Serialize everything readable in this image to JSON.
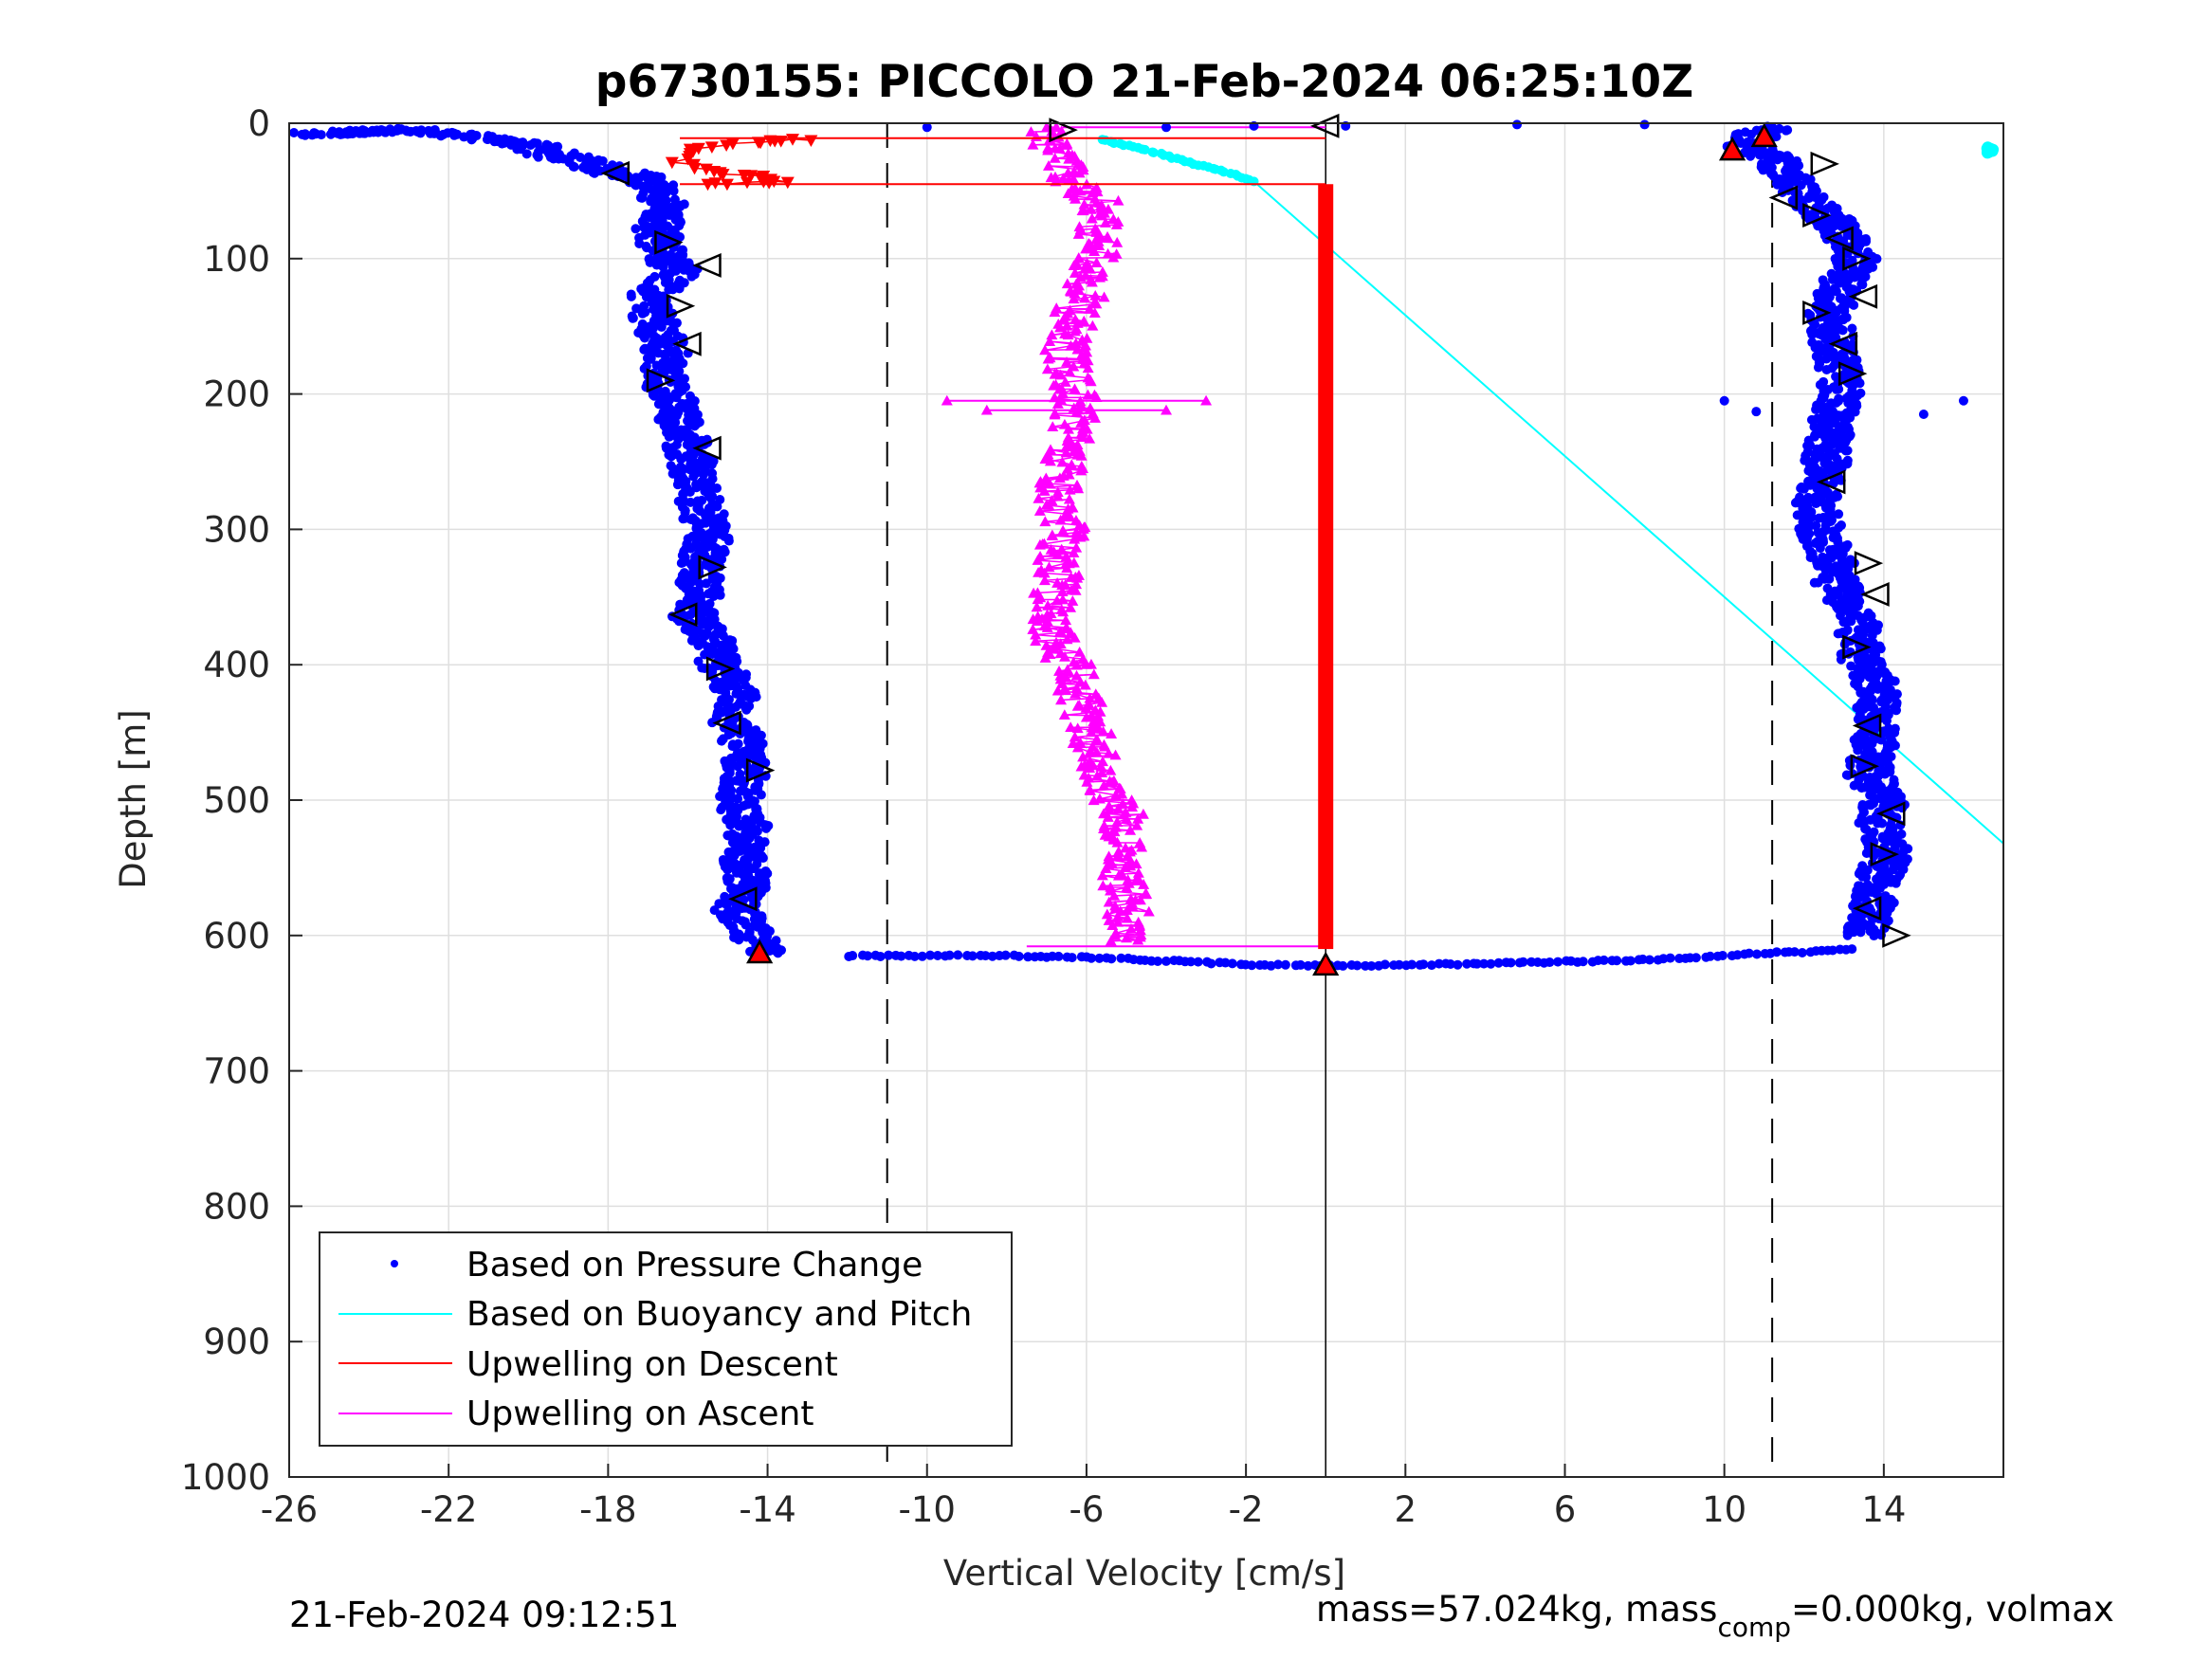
{
  "chart_data": {
    "type": "scatter",
    "title": "p6730155: PICCOLO 21-Feb-2024 06:25:10Z",
    "xlabel": "Vertical Velocity [cm/s]",
    "ylabel": "Depth [m]",
    "xlim": [
      -26,
      17
    ],
    "ylim": [
      0,
      1000
    ],
    "y_reversed": true,
    "x_ticks": [
      -26,
      -22,
      -18,
      -14,
      -10,
      -6,
      -2,
      2,
      6,
      10,
      14
    ],
    "x_tick_labels": [
      "-26",
      "-22",
      "-18",
      "-14",
      "-10",
      "-6",
      "-2",
      "2",
      "6",
      "10",
      "14"
    ],
    "y_ticks": [
      0,
      100,
      200,
      300,
      400,
      500,
      600,
      700,
      800,
      900,
      1000
    ],
    "y_tick_labels": [
      "0",
      "100",
      "200",
      "300",
      "400",
      "500",
      "600",
      "700",
      "800",
      "900",
      "1000"
    ],
    "grid": true,
    "legend_position": "bottom-left",
    "reference_lines": {
      "dashed_x": [
        -11,
        11.2
      ],
      "solid_x": [
        0
      ]
    },
    "series": [
      {
        "name": "Based on Pressure Change",
        "color": "#0000ff",
        "style": "dots",
        "descent": [
          [
            -25.5,
            8
          ],
          [
            -23,
            5
          ],
          [
            -20,
            15
          ],
          [
            -19.5,
            22
          ],
          [
            -18.5,
            30
          ],
          [
            -17.8,
            37
          ],
          [
            -17,
            40
          ],
          [
            -16.5,
            60
          ],
          [
            -16.8,
            80
          ],
          [
            -16.5,
            100
          ],
          [
            -16.2,
            110
          ],
          [
            -17,
            130
          ],
          [
            -16.8,
            150
          ],
          [
            -16.5,
            170
          ],
          [
            -16.6,
            190
          ],
          [
            -16.3,
            210
          ],
          [
            -16.1,
            230
          ],
          [
            -15.9,
            250
          ],
          [
            -15.8,
            270
          ],
          [
            -15.6,
            290
          ],
          [
            -15.5,
            310
          ],
          [
            -15.7,
            330
          ],
          [
            -15.7,
            350
          ],
          [
            -15.9,
            365
          ],
          [
            -15.4,
            380
          ],
          [
            -15.2,
            400
          ],
          [
            -14.8,
            420
          ],
          [
            -14.9,
            440
          ],
          [
            -14.6,
            460
          ],
          [
            -14.5,
            480
          ],
          [
            -14.7,
            500
          ],
          [
            -14.5,
            520
          ],
          [
            -14.6,
            540
          ],
          [
            -14.5,
            560
          ],
          [
            -14.8,
            580
          ],
          [
            -14.4,
            600
          ],
          [
            -14.1,
            613
          ]
        ],
        "bottom_turn": [
          [
            -12,
            615
          ],
          [
            -8,
            615
          ],
          [
            -6,
            616
          ],
          [
            -4.5,
            618
          ],
          [
            -3,
            620
          ],
          [
            -1.5,
            622
          ],
          [
            1.5,
            622
          ],
          [
            3.5,
            621
          ],
          [
            5,
            620
          ],
          [
            6.5,
            619
          ],
          [
            8,
            618
          ],
          [
            9.5,
            616
          ],
          [
            11,
            613
          ],
          [
            12.3,
            612
          ],
          [
            13.2,
            610
          ]
        ],
        "ascent": [
          [
            13.5,
            600
          ],
          [
            13.7,
            580
          ],
          [
            13.8,
            560
          ],
          [
            14.1,
            540
          ],
          [
            13.9,
            520
          ],
          [
            14.0,
            500
          ],
          [
            13.6,
            480
          ],
          [
            13.8,
            460
          ],
          [
            13.8,
            440
          ],
          [
            13.9,
            420
          ],
          [
            13.5,
            400
          ],
          [
            13.4,
            380
          ],
          [
            13.3,
            360
          ],
          [
            12.8,
            340
          ],
          [
            12.7,
            320
          ],
          [
            12.4,
            300
          ],
          [
            12.3,
            280
          ],
          [
            12.5,
            260
          ],
          [
            12.6,
            240
          ],
          [
            12.7,
            220
          ],
          [
            12.9,
            200
          ],
          [
            12.9,
            180
          ],
          [
            12.7,
            160
          ],
          [
            12.6,
            140
          ],
          [
            12.9,
            120
          ],
          [
            13.3,
            100
          ],
          [
            13.0,
            80
          ],
          [
            12.2,
            60
          ],
          [
            11.7,
            40
          ],
          [
            11.2,
            25
          ],
          [
            10.6,
            18
          ],
          [
            10.8,
            8
          ],
          [
            11.2,
            3
          ]
        ],
        "surface_outliers": [
          [
            -10,
            3
          ],
          [
            -4,
            3
          ],
          [
            -1.8,
            2
          ],
          [
            0.5,
            2
          ],
          [
            4.8,
            1
          ],
          [
            8,
            1
          ]
        ],
        "side_outliers": [
          [
            16,
            205
          ],
          [
            15,
            215
          ],
          [
            10,
            205
          ],
          [
            10.8,
            213
          ]
        ]
      },
      {
        "name": "Based on Buoyancy and Pitch",
        "color": "#00ffff",
        "style": "line",
        "points": [
          [
            -5.6,
            12
          ],
          [
            -4.5,
            20
          ],
          [
            -3.5,
            28
          ],
          [
            -2.4,
            37
          ],
          [
            -1.8,
            43
          ],
          [
            17,
            532
          ]
        ],
        "surface_cluster": [
          [
            16.6,
            18
          ],
          [
            16.7,
            20
          ],
          [
            16.6,
            22
          ]
        ]
      },
      {
        "name": "Upwelling on Descent",
        "color": "#ff0000",
        "style": "line-triangle-down",
        "points": [
          [
            -13,
            12
          ],
          [
            -14.5,
            14
          ],
          [
            -15,
            16
          ],
          [
            -15.5,
            18
          ],
          [
            -16,
            22
          ],
          [
            -16.2,
            27
          ],
          [
            -16,
            33
          ],
          [
            -15,
            37
          ],
          [
            -14,
            40
          ],
          [
            -13.5,
            43
          ],
          [
            -15.5,
            45
          ]
        ],
        "horizontal_connectors": [
          [
            -16.2,
            11,
            0,
            11
          ],
          [
            -16.2,
            45,
            0,
            45
          ]
        ],
        "column_x": 0,
        "column_range": [
          45,
          610
        ]
      },
      {
        "name": "Upwelling on Ascent",
        "color": "#ff00ff",
        "style": "line-triangle-up",
        "points": [
          [
            -5.2,
            605
          ],
          [
            -4.9,
            580
          ],
          [
            -5.1,
            560
          ],
          [
            -5.2,
            540
          ],
          [
            -5.0,
            520
          ],
          [
            -5.3,
            500
          ],
          [
            -5.6,
            480
          ],
          [
            -5.8,
            460
          ],
          [
            -6.0,
            440
          ],
          [
            -6.2,
            420
          ],
          [
            -6.4,
            400
          ],
          [
            -6.8,
            380
          ],
          [
            -6.9,
            360
          ],
          [
            -6.7,
            340
          ],
          [
            -6.7,
            320
          ],
          [
            -6.5,
            300
          ],
          [
            -6.8,
            280
          ],
          [
            -6.6,
            260
          ],
          [
            -6.4,
            240
          ],
          [
            -6.3,
            220
          ],
          [
            -6.3,
            200
          ],
          [
            -6.5,
            180
          ],
          [
            -6.5,
            160
          ],
          [
            -6.3,
            140
          ],
          [
            -6.0,
            120
          ],
          [
            -5.7,
            100
          ],
          [
            -5.7,
            80
          ],
          [
            -5.6,
            60
          ],
          [
            -6.5,
            40
          ],
          [
            -6.8,
            20
          ],
          [
            -7.0,
            3
          ]
        ],
        "error_bar_rows": [
          {
            "y": 205,
            "xmin": -9.5,
            "xmax": -3.0
          },
          {
            "y": 212,
            "xmin": -8.5,
            "xmax": -4.0
          }
        ]
      }
    ],
    "turn_markers": {
      "descent_left": [
        [
          -17.8,
          37
        ],
        [
          -16.5,
          88
        ],
        [
          -15.5,
          105
        ],
        [
          -16.2,
          135
        ],
        [
          -16,
          163
        ],
        [
          -16.7,
          190
        ],
        [
          -15.5,
          240
        ],
        [
          -15.4,
          328
        ],
        [
          -16.1,
          363
        ],
        [
          -15.2,
          403
        ],
        [
          -15,
          443
        ],
        [
          -14.2,
          478
        ],
        [
          -14.6,
          573
        ]
      ],
      "ascent_right": [
        [
          12.5,
          30
        ],
        [
          11.5,
          55
        ],
        [
          12.3,
          68
        ],
        [
          12.9,
          85
        ],
        [
          13.3,
          100
        ],
        [
          13.5,
          128
        ],
        [
          12.3,
          140
        ],
        [
          13.0,
          163
        ],
        [
          13.2,
          185
        ],
        [
          12.7,
          265
        ],
        [
          13.6,
          325
        ],
        [
          13.8,
          348
        ],
        [
          13.3,
          387
        ],
        [
          13.6,
          445
        ],
        [
          13.5,
          475
        ],
        [
          14.2,
          510
        ],
        [
          14.0,
          540
        ],
        [
          13.6,
          580
        ],
        [
          14.3,
          600
        ]
      ],
      "surface": [
        [
          -6.6,
          5
        ],
        [
          0,
          2
        ],
        [
          11.0,
          10
        ],
        [
          10.2,
          20
        ]
      ],
      "bottom": [
        [
          -14.2,
          613
        ],
        [
          0,
          622
        ]
      ]
    }
  },
  "footer": {
    "timestamp": "21-Feb-2024 09:12:51",
    "mass_text": "mass=57.024kg, mass",
    "mass_sub": "comp",
    "mass_tail": "=0.000kg, volmax"
  }
}
